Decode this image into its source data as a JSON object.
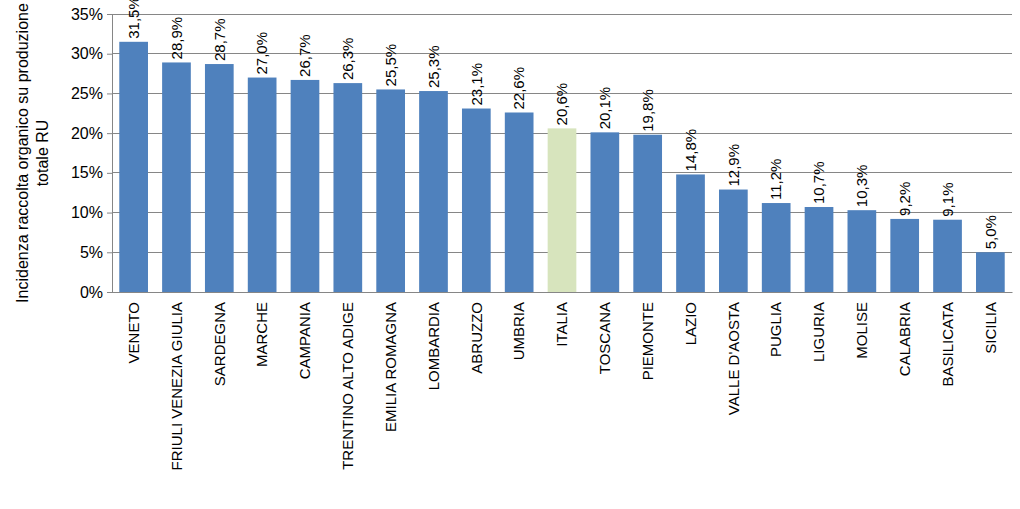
{
  "chart_data": {
    "type": "bar",
    "y_label": [
      "Incidenza raccolta organico su produzione",
      "totale RU"
    ],
    "categories": [
      "VENETO",
      "FRIULI VENEZIA GIULIA",
      "SARDEGNA",
      "MARCHE",
      "CAMPANIA",
      "TRENTINO ALTO ADIGE",
      "EMILIA ROMAGNA",
      "LOMBARDIA",
      "ABRUZZO",
      "UMBRIA",
      "ITALIA",
      "TOSCANA",
      "PIEMONTE",
      "LAZIO",
      "VALLE D'AOSTA",
      "PUGLIA",
      "LIGURIA",
      "MOLISE",
      "CALABRIA",
      "BASILICATA",
      "SICILIA"
    ],
    "values": [
      31.5,
      28.9,
      28.7,
      27.0,
      26.7,
      26.3,
      25.5,
      25.3,
      23.1,
      22.6,
      20.6,
      20.1,
      19.8,
      14.8,
      12.9,
      11.2,
      10.7,
      10.3,
      9.2,
      9.1,
      5.0
    ],
    "value_labels": [
      "31,5%",
      "28,9%",
      "28,7%",
      "27,0%",
      "26,7%",
      "26,3%",
      "25,5%",
      "25,3%",
      "23,1%",
      "22,6%",
      "20,6%",
      "20,1%",
      "19,8%",
      "14,8%",
      "12,9%",
      "11,2%",
      "10,7%",
      "10,3%",
      "9,2%",
      "9,1%",
      "5,0%"
    ],
    "colors": [
      "#4f81bd",
      "#4f81bd",
      "#4f81bd",
      "#4f81bd",
      "#4f81bd",
      "#4f81bd",
      "#4f81bd",
      "#4f81bd",
      "#4f81bd",
      "#4f81bd",
      "#d7e4bd",
      "#4f81bd",
      "#4f81bd",
      "#4f81bd",
      "#4f81bd",
      "#4f81bd",
      "#4f81bd",
      "#4f81bd",
      "#4f81bd",
      "#4f81bd",
      "#4f81bd"
    ],
    "ylim": [
      0,
      35
    ],
    "yticks": [
      {
        "value": 0,
        "label": "0%"
      },
      {
        "value": 5,
        "label": "5%"
      },
      {
        "value": 10,
        "label": "10%"
      },
      {
        "value": 15,
        "label": "15%"
      },
      {
        "value": 20,
        "label": "20%"
      },
      {
        "value": 25,
        "label": "25%"
      },
      {
        "value": 30,
        "label": "30%"
      },
      {
        "value": 35,
        "label": "35%"
      }
    ],
    "grid": true,
    "data_labels": true
  }
}
